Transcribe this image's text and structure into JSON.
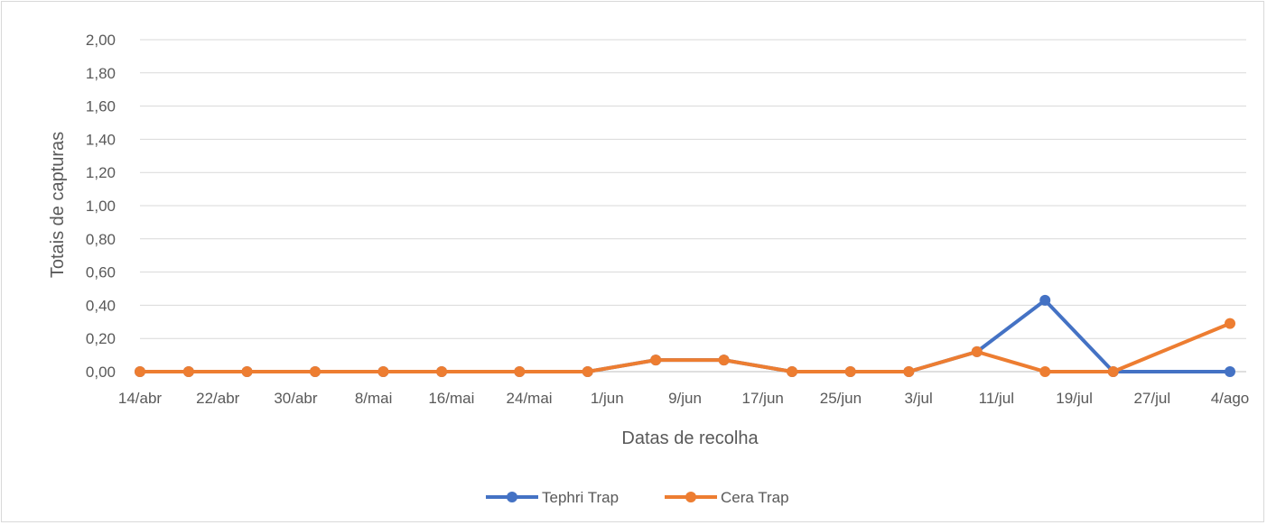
{
  "chart_data": {
    "type": "line",
    "title": "",
    "xlabel": "Datas de recolha",
    "ylabel": "Totais de capturas",
    "ylim": [
      0,
      2
    ],
    "yticks": [
      "0,00",
      "0,20",
      "0,40",
      "0,60",
      "0,80",
      "1,00",
      "1,20",
      "1,40",
      "1,60",
      "1,80",
      "2,00"
    ],
    "x_start": "2018-04-14",
    "x_end": "2018-08-04",
    "x_tick_labels": [
      "14/abr",
      "22/abr",
      "30/abr",
      "8/mai",
      "16/mai",
      "24/mai",
      "1/jun",
      "9/jun",
      "17/jun",
      "25/jun",
      "3/jul",
      "11/jul",
      "19/jul",
      "27/jul",
      "4/ago"
    ],
    "x_tick_dates": [
      "2018-04-14",
      "2018-04-22",
      "2018-04-30",
      "2018-05-08",
      "2018-05-16",
      "2018-05-24",
      "2018-06-01",
      "2018-06-09",
      "2018-06-17",
      "2018-06-25",
      "2018-07-03",
      "2018-07-11",
      "2018-07-19",
      "2018-07-27",
      "2018-08-04"
    ],
    "grid": true,
    "legend_position": "bottom",
    "series": [
      {
        "name": "Tephri Trap",
        "color": "#4472C4",
        "points": [
          {
            "x": "2018-04-14",
            "y": 0
          },
          {
            "x": "2018-04-19",
            "y": 0
          },
          {
            "x": "2018-04-25",
            "y": 0
          },
          {
            "x": "2018-05-02",
            "y": 0
          },
          {
            "x": "2018-05-09",
            "y": 0
          },
          {
            "x": "2018-05-15",
            "y": 0
          },
          {
            "x": "2018-05-23",
            "y": 0
          },
          {
            "x": "2018-05-30",
            "y": 0
          },
          {
            "x": "2018-06-06",
            "y": 0.07
          },
          {
            "x": "2018-06-13",
            "y": 0.07
          },
          {
            "x": "2018-06-20",
            "y": 0
          },
          {
            "x": "2018-06-26",
            "y": 0
          },
          {
            "x": "2018-07-02",
            "y": 0
          },
          {
            "x": "2018-07-09",
            "y": 0.12
          },
          {
            "x": "2018-07-16",
            "y": 0.43
          },
          {
            "x": "2018-07-23",
            "y": 0
          },
          {
            "x": "2018-08-04",
            "y": 0
          }
        ]
      },
      {
        "name": "Cera Trap",
        "color": "#ED7D31",
        "points": [
          {
            "x": "2018-04-14",
            "y": 0
          },
          {
            "x": "2018-04-19",
            "y": 0
          },
          {
            "x": "2018-04-25",
            "y": 0
          },
          {
            "x": "2018-05-02",
            "y": 0
          },
          {
            "x": "2018-05-09",
            "y": 0
          },
          {
            "x": "2018-05-15",
            "y": 0
          },
          {
            "x": "2018-05-23",
            "y": 0
          },
          {
            "x": "2018-05-30",
            "y": 0
          },
          {
            "x": "2018-06-06",
            "y": 0.07
          },
          {
            "x": "2018-06-13",
            "y": 0.07
          },
          {
            "x": "2018-06-20",
            "y": 0
          },
          {
            "x": "2018-06-26",
            "y": 0
          },
          {
            "x": "2018-07-02",
            "y": 0
          },
          {
            "x": "2018-07-09",
            "y": 0.12
          },
          {
            "x": "2018-07-16",
            "y": 0
          },
          {
            "x": "2018-07-23",
            "y": 0
          },
          {
            "x": "2018-08-04",
            "y": 0.29
          }
        ]
      }
    ]
  }
}
